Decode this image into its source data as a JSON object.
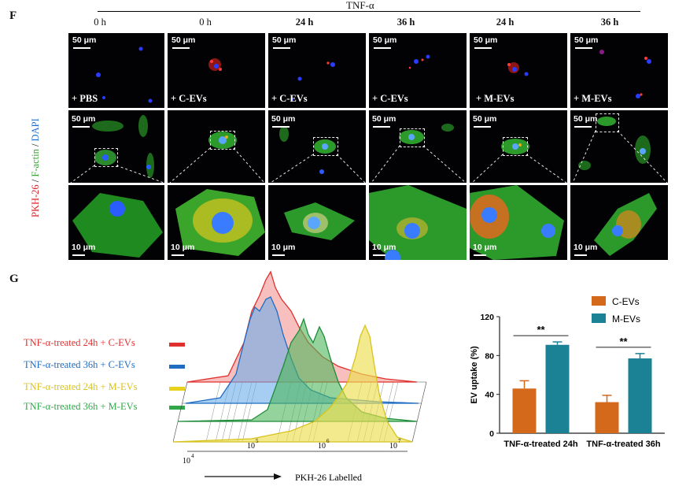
{
  "panel_f": {
    "label": "F",
    "group_label": "TNF-α",
    "columns": [
      {
        "time": "0 h",
        "bold": false,
        "treatment": "+ PBS"
      },
      {
        "time": "0 h",
        "bold": false,
        "treatment": "+ C-EVs"
      },
      {
        "time": "24 h",
        "bold": true,
        "treatment": "+ C-EVs"
      },
      {
        "time": "36 h",
        "bold": true,
        "treatment": "+ C-EVs"
      },
      {
        "time": "24 h",
        "bold": true,
        "treatment": "+ M-EVs"
      },
      {
        "time": "36 h",
        "bold": true,
        "treatment": "+ M-EVs"
      }
    ],
    "scale_bar_large": "50 μm",
    "scale_bar_small": "10 μm",
    "stain_label": {
      "pkh": "PKH-26",
      "sep1": " / ",
      "factin": "F-actin",
      "sep2": " / ",
      "dapi": "DAPI"
    },
    "colors": {
      "pkh": "#d8262c",
      "factin": "#3aa535",
      "dapi": "#1f6fd1"
    }
  },
  "panel_g": {
    "label": "G",
    "flow": {
      "xlabel": "PKH-26 Labelled",
      "tick_labels": [
        {
          "base": "10",
          "exp": "4"
        },
        {
          "base": "10",
          "exp": "5"
        },
        {
          "base": "10",
          "exp": "6"
        },
        {
          "base": "10",
          "exp": "7"
        }
      ],
      "legend": [
        {
          "text": "TNF-α-treated 24h + C-EVs",
          "color": "#e0302e"
        },
        {
          "text": "TNF-α-treated 36h + C-EVs",
          "color": "#1f6cc0"
        },
        {
          "text": "TNF-α-treated 24h + M-EVs",
          "color": "#e8d21e"
        },
        {
          "text": "TNF-α-treated 36h + M-EVs",
          "color": "#2fa84a"
        }
      ]
    }
  },
  "chart_data": {
    "type": "bar",
    "title": "",
    "categories": [
      "TNF-α-treated 24h",
      "TNF-α-treated 36h"
    ],
    "series": [
      {
        "name": "C-EVs",
        "color": "#d4691b",
        "values": [
          46,
          32
        ],
        "errors": [
          8,
          7
        ]
      },
      {
        "name": "M-EVs",
        "color": "#1b8295",
        "values": [
          91,
          77
        ],
        "errors": [
          3,
          5
        ]
      }
    ],
    "xlabel": "",
    "ylabel": "EV uptake (%)",
    "ylim": [
      0,
      120
    ],
    "yticks": [
      0,
      40,
      80,
      120
    ],
    "significance": [
      {
        "category": "TNF-α-treated 24h",
        "text": "**"
      },
      {
        "category": "TNF-α-treated 36h",
        "text": "**"
      }
    ],
    "legend_position": "top-right"
  }
}
